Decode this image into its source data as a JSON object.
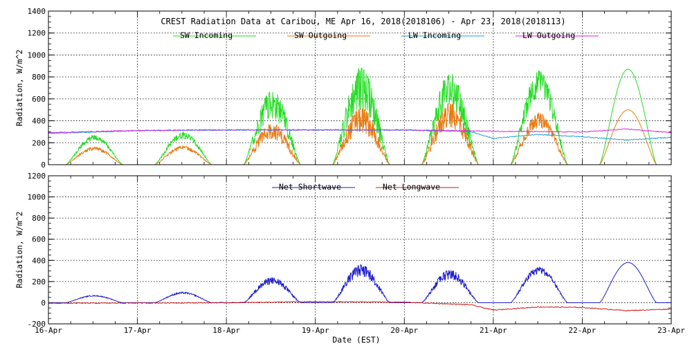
{
  "chart_data": [
    {
      "type": "line",
      "title": "CREST Radiation Data at Caribou, ME   Apr 16, 2018(2018106) - Apr 23, 2018(2018113)",
      "xlabel": "",
      "ylabel": "Radiation, W/m^2",
      "xlim": [
        "16-Apr",
        "23-Apr"
      ],
      "ylim": [
        0,
        1400
      ],
      "yticks": [
        "0",
        "200",
        "400",
        "600",
        "800",
        "1000",
        "1200",
        "1400"
      ],
      "grid": true,
      "legend": "top",
      "series": [
        {
          "name": "SW Incoming",
          "color": "#22dd22",
          "daily_peaks": [
            {
              "day": "16-Apr",
              "peak": 270
            },
            {
              "day": "17-Apr",
              "peak": 300
            },
            {
              "day": "18-Apr",
              "peak": 680
            },
            {
              "day": "19-Apr",
              "peak": 890
            },
            {
              "day": "20-Apr",
              "peak": 840
            },
            {
              "day": "21-Apr",
              "peak": 860
            },
            {
              "day": "22-Apr",
              "peak": 870
            }
          ]
        },
        {
          "name": "SW Outgoing",
          "color": "#e87a10",
          "daily_peaks": [
            {
              "day": "16-Apr",
              "peak": 160
            },
            {
              "day": "17-Apr",
              "peak": 170
            },
            {
              "day": "18-Apr",
              "peak": 380
            },
            {
              "day": "19-Apr",
              "peak": 520
            },
            {
              "day": "20-Apr",
              "peak": 560
            },
            {
              "day": "21-Apr",
              "peak": 470
            },
            {
              "day": "22-Apr",
              "peak": 500
            }
          ]
        },
        {
          "name": "LW Incoming",
          "color": "#1aa0d8",
          "x": [
            "16-Apr 00:00",
            "17-Apr 00:00",
            "18-Apr 00:00",
            "19-Apr 00:00",
            "20-Apr 00:00",
            "20-Apr 18:00",
            "21-Apr 00:00",
            "21-Apr 12:00",
            "22-Apr 00:00",
            "22-Apr 12:00",
            "23-Apr 00:00"
          ],
          "values": [
            285,
            310,
            315,
            315,
            315,
            300,
            240,
            275,
            255,
            225,
            250
          ]
        },
        {
          "name": "LW Outgoing",
          "color": "#dd22dd",
          "x": [
            "16-Apr 00:00",
            "17-Apr 00:00",
            "18-Apr 00:00",
            "19-Apr 00:00",
            "20-Apr 00:00",
            "21-Apr 00:00",
            "22-Apr 00:00",
            "22-Apr 12:00",
            "23-Apr 00:00"
          ],
          "values": [
            292,
            312,
            318,
            318,
            318,
            305,
            298,
            325,
            292
          ]
        }
      ]
    },
    {
      "type": "line",
      "title": "",
      "xlabel": "Date (EST)",
      "ylabel": "Radiation, W/m^2",
      "xlim": [
        "16-Apr",
        "23-Apr"
      ],
      "ylim": [
        -200,
        1200
      ],
      "yticks": [
        "-200",
        "0",
        "200",
        "400",
        "600",
        "800",
        "1000",
        "1200"
      ],
      "xticks": [
        "16-Apr",
        "17-Apr",
        "18-Apr",
        "19-Apr",
        "20-Apr",
        "21-Apr",
        "22-Apr",
        "23-Apr"
      ],
      "grid": true,
      "legend": "top",
      "series": [
        {
          "name": "Net Shortwave",
          "color": "#1a1acc",
          "daily_peaks": [
            {
              "day": "16-Apr",
              "peak": 70
            },
            {
              "day": "17-Apr",
              "peak": 100
            },
            {
              "day": "18-Apr",
              "peak": 240
            },
            {
              "day": "19-Apr",
              "peak": 360
            },
            {
              "day": "20-Apr",
              "peak": 310
            },
            {
              "day": "21-Apr",
              "peak": 340
            },
            {
              "day": "22-Apr",
              "peak": 380
            }
          ]
        },
        {
          "name": "Net Longwave",
          "color": "#cc1a1a",
          "x": [
            "16-Apr 00:00",
            "17-Apr 00:00",
            "18-Apr 00:00",
            "19-Apr 00:00",
            "20-Apr 00:00",
            "20-Apr 18:00",
            "21-Apr 00:00",
            "21-Apr 12:00",
            "22-Apr 00:00",
            "22-Apr 12:00",
            "23-Apr 00:00"
          ],
          "values": [
            -5,
            -3,
            0,
            10,
            5,
            -20,
            -70,
            -40,
            -45,
            -75,
            -60
          ]
        }
      ]
    }
  ]
}
